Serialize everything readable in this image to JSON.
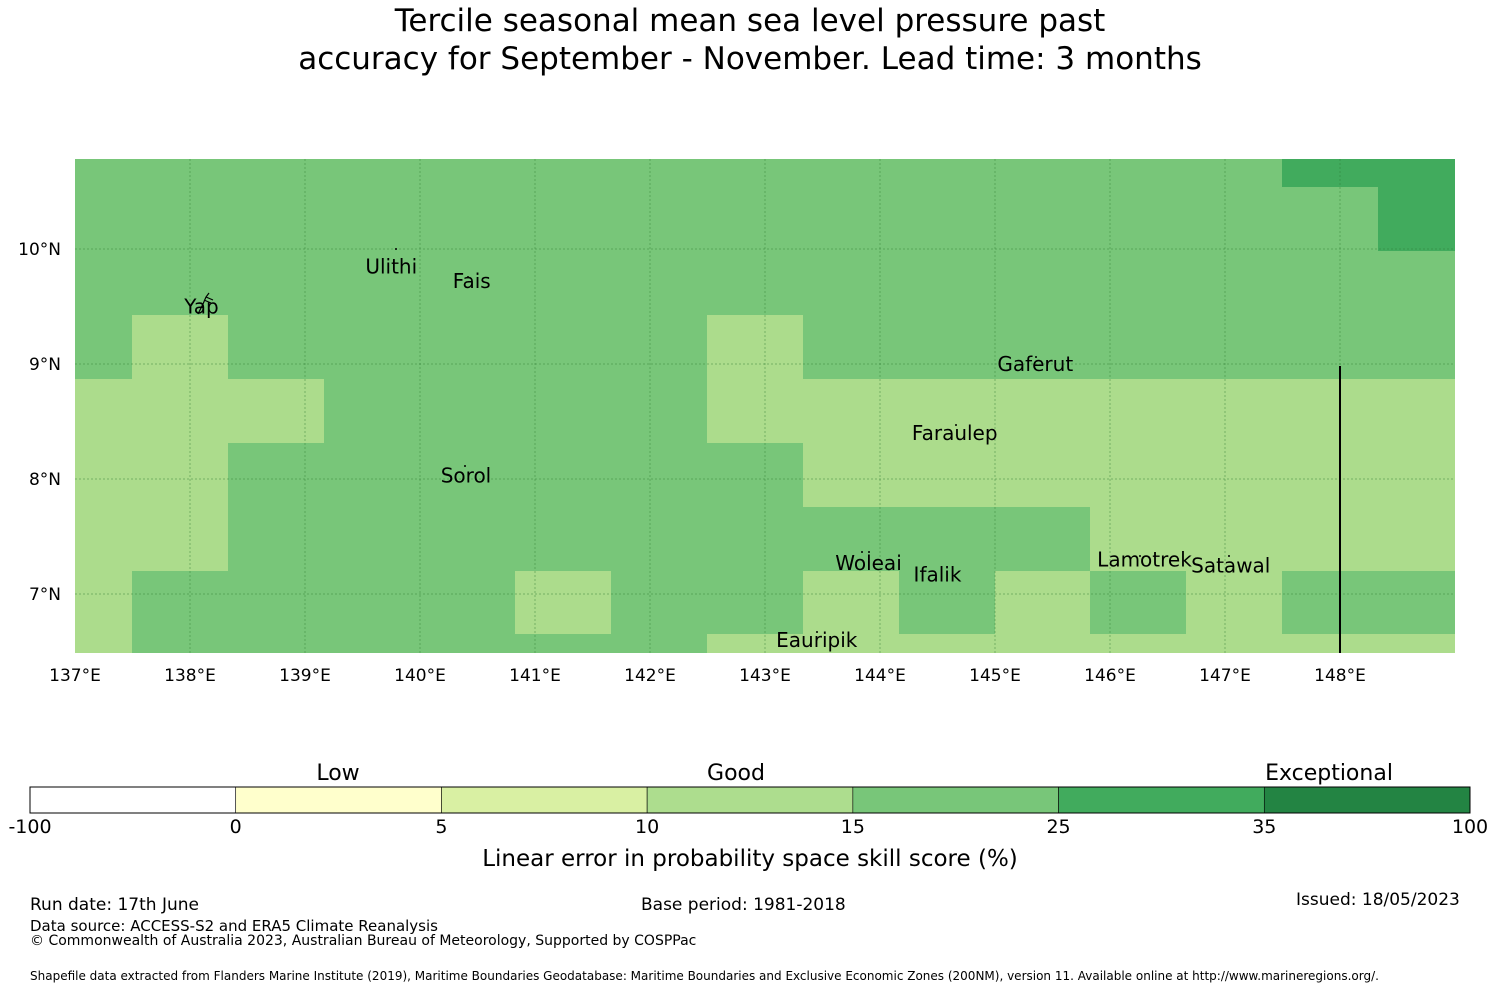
{
  "title": {
    "line1": "Tercile seasonal mean sea level pressure past",
    "line2": "accuracy for September - November. Lead time: 3 months"
  },
  "map": {
    "lon_range": [
      137,
      149
    ],
    "lat_range": [
      6.5,
      10.8
    ],
    "lon_ticks": [
      "137°E",
      "138°E",
      "139°E",
      "140°E",
      "141°E",
      "142°E",
      "143°E",
      "144°E",
      "145°E",
      "146°E",
      "147°E",
      "148°E"
    ],
    "lat_ticks": [
      "10°N",
      "9°N",
      "8°N",
      "7°N"
    ],
    "colors": {
      "c10_15": "#acdc8c",
      "c15_25": "#78c679",
      "c25_35": "#41ab5d"
    },
    "places": [
      {
        "name": "Ulithi",
        "lon": 139.75,
        "lat": 9.85
      },
      {
        "name": "Fais",
        "lon": 140.45,
        "lat": 9.72
      },
      {
        "name": "Yap",
        "lon": 138.1,
        "lat": 9.5
      },
      {
        "name": "Gaferut",
        "lon": 145.35,
        "lat": 9.0
      },
      {
        "name": "Faraulep",
        "lon": 144.65,
        "lat": 8.4
      },
      {
        "name": "Sorol",
        "lon": 140.4,
        "lat": 8.03
      },
      {
        "name": "Woleai",
        "lon": 143.9,
        "lat": 7.27
      },
      {
        "name": "Ifalik",
        "lon": 144.5,
        "lat": 7.17
      },
      {
        "name": "Lamotrek",
        "lon": 146.3,
        "lat": 7.3
      },
      {
        "name": "Satawal",
        "lon": 147.05,
        "lat": 7.25
      },
      {
        "name": "Eauripik",
        "lon": 143.45,
        "lat": 6.6
      }
    ]
  },
  "colorbar": {
    "categories": [
      "Low",
      "Good",
      "Exceptional"
    ],
    "ticks": [
      "-100",
      "0",
      "5",
      "10",
      "15",
      "25",
      "35",
      "100"
    ],
    "colors": [
      "#ffffff",
      "#ffffcc",
      "#d9f0a3",
      "#addd8e",
      "#78c679",
      "#41ab5d",
      "#238443"
    ],
    "label": "Linear error in probability space skill score (%)"
  },
  "footer": {
    "run_date": "Run date: 17th June",
    "data_source": "Data source: ACCESS-S2 and ERA5 Climate Reanalysis",
    "copyright": "© Commonwealth of Australia 2023, Australian Bureau of Meteorology, Supported by COSPPac",
    "base_period": "Base period: 1981-2018",
    "issued": "Issued: 18/05/2023",
    "shapefile": "Shapefile data extracted from Flanders Marine Institute (2019), Maritime Boundaries Geodatabase: Maritime Boundaries and Exclusive Economic Zones (200NM), version 11. Available online at http://www.marineregions.org/."
  }
}
